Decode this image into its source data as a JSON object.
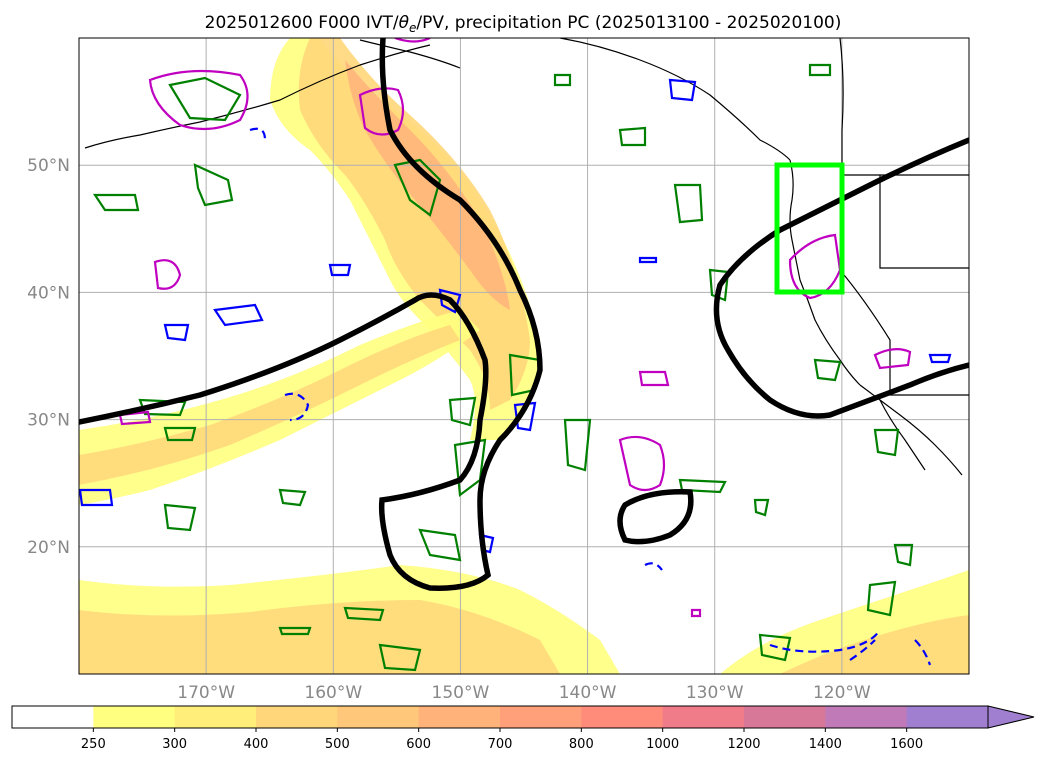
{
  "title": "2025012600 F000 IVT/θe/PV, precipitation PC (2025013100 - 2025020100)",
  "title_parts": {
    "prefix": "2025012600 F000 IVT/",
    "theta": "θ",
    "sub": "e",
    "suffix": "/PV, precipitation PC (2025013100 - 2025020100)"
  },
  "map": {
    "lon_range": [
      -180,
      -110
    ],
    "lat_range": [
      10,
      60
    ],
    "lon_ticks": [
      {
        "value": -170,
        "label": "170°W"
      },
      {
        "value": -160,
        "label": "160°W"
      },
      {
        "value": -150,
        "label": "150°W"
      },
      {
        "value": -140,
        "label": "140°W"
      },
      {
        "value": -130,
        "label": "130°W"
      },
      {
        "value": -120,
        "label": "120°W"
      }
    ],
    "lat_ticks": [
      {
        "value": 20,
        "label": "20°N"
      },
      {
        "value": 30,
        "label": "30°N"
      },
      {
        "value": 40,
        "label": "40°N"
      },
      {
        "value": 50,
        "label": "50°N"
      }
    ],
    "highlight_box": {
      "lon": [
        -125,
        -122
      ],
      "lat": [
        40,
        50
      ],
      "color": "#00ff00"
    },
    "colors": {
      "grid": "#b0b0b0",
      "theta_contour": "#000000",
      "pv_pos": "#008000",
      "pv_neg": "#0000ff",
      "precip": "#c000c0"
    }
  },
  "colorbar": {
    "levels": [
      "250",
      "300",
      "400",
      "500",
      "600",
      "700",
      "800",
      "1000",
      "1200",
      "1400",
      "1600"
    ],
    "colors": [
      "#ffffff",
      "#ffff80",
      "#ffef7a",
      "#ffd77a",
      "#ffc77a",
      "#ffb37a",
      "#ffa07a",
      "#ff8c7a",
      "#f07c8a",
      "#d87898",
      "#c07ab8",
      "#a07ed0"
    ],
    "extend": "max"
  }
}
